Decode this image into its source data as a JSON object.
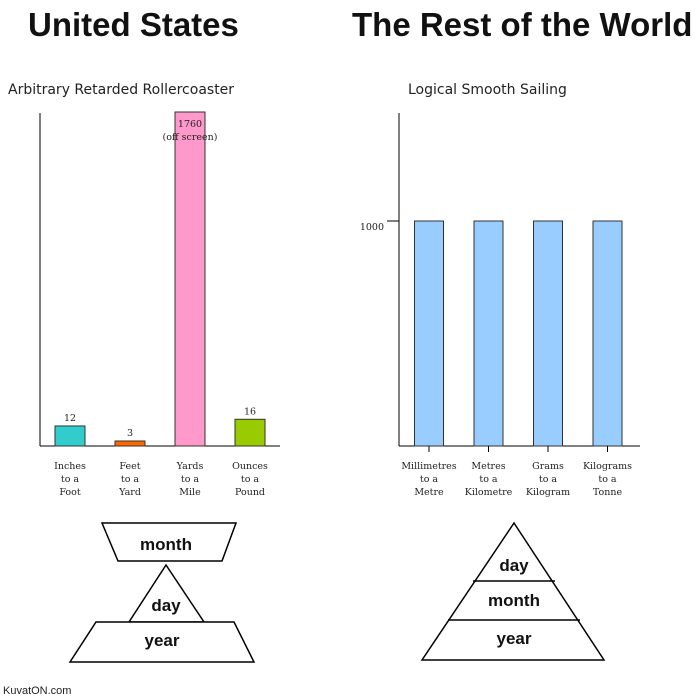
{
  "headings": {
    "left": "United States",
    "right": "The Rest of the World"
  },
  "chart_data": [
    {
      "type": "bar",
      "title": "Arbitrary Retarded Rollercoaster",
      "categories": [
        [
          "Inches",
          "to a",
          "Foot"
        ],
        [
          "Feet",
          "to a",
          "Yard"
        ],
        [
          "Yards",
          "to a",
          "Mile"
        ],
        [
          "Ounces",
          "to a",
          "Pound"
        ]
      ],
      "values": [
        12,
        3,
        1760,
        16
      ],
      "value_labels": [
        "12",
        "3",
        "1760",
        "16"
      ],
      "annotation": "(off screen)",
      "colors": [
        "#33cccc",
        "#ff6600",
        "#ff99cc",
        "#99cc00"
      ],
      "ylim": [
        0,
        200
      ],
      "clipped": [
        false,
        false,
        true,
        false
      ]
    },
    {
      "type": "bar",
      "title": "Logical Smooth Sailing",
      "categories": [
        [
          "Millimetres",
          "to a",
          "Metre"
        ],
        [
          "Metres",
          "to a",
          "Kilometre"
        ],
        [
          "Grams",
          "to a",
          "Kilogram"
        ],
        [
          "Kilograms",
          "to a",
          "Tonne"
        ]
      ],
      "values": [
        1000,
        1000,
        1000,
        1000
      ],
      "yticks": [
        "1000"
      ],
      "colors": [
        "#99ccff",
        "#99ccff",
        "#99ccff",
        "#99ccff"
      ],
      "ylim": [
        0,
        1480
      ]
    }
  ],
  "pyramids": {
    "left": [
      "month",
      "day",
      "year"
    ],
    "right": [
      "day",
      "month",
      "year"
    ]
  },
  "watermark": "KuvatON.com"
}
